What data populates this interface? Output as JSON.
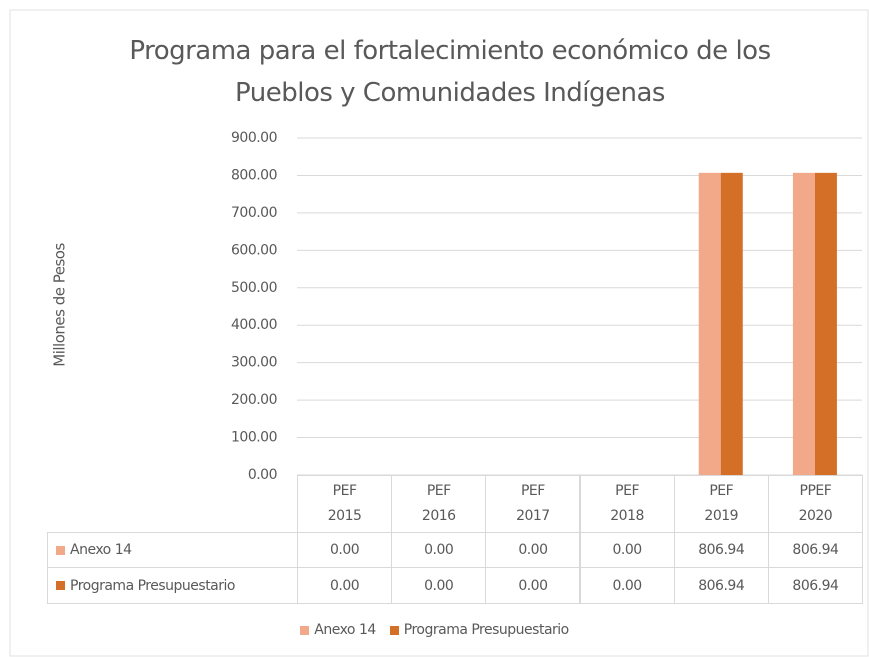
{
  "chart_data": {
    "type": "bar",
    "title": "Programa para el fortalecimiento económico de los Pueblos y Comunidades Indígenas",
    "y_label": "Millones de Pesos",
    "categories": [
      "PEF 2015",
      "PEF 2016",
      "PEF 2017",
      "PEF 2018",
      "PEF 2019",
      "PPEF 2020"
    ],
    "series": [
      {
        "name": "Anexo 14",
        "color": "#f2a98a",
        "values": [
          0,
          0,
          0,
          0,
          806.94,
          806.94
        ],
        "value_labels": [
          "0.00",
          "0.00",
          "0.00",
          "0.00",
          "806.94",
          "806.94"
        ]
      },
      {
        "name": "Programa Presupuestario",
        "color": "#d46f28",
        "values": [
          0,
          0,
          0,
          0,
          806.94,
          806.94
        ],
        "value_labels": [
          "0.00",
          "0.00",
          "0.00",
          "0.00",
          "806.94",
          "806.94"
        ]
      }
    ],
    "ylim": [
      0,
      900
    ],
    "yticks": [
      {
        "value": 0,
        "label": "0.00"
      },
      {
        "value": 100,
        "label": "100.00"
      },
      {
        "value": 200,
        "label": "200.00"
      },
      {
        "value": 300,
        "label": "300.00"
      },
      {
        "value": 400,
        "label": "400.00"
      },
      {
        "value": 500,
        "label": "500.00"
      },
      {
        "value": 600,
        "label": "600.00"
      },
      {
        "value": 700,
        "label": "700.00"
      },
      {
        "value": 800,
        "label": "800.00"
      },
      {
        "value": 900,
        "label": "900.00"
      }
    ],
    "grid": true,
    "legend": "bottom"
  }
}
